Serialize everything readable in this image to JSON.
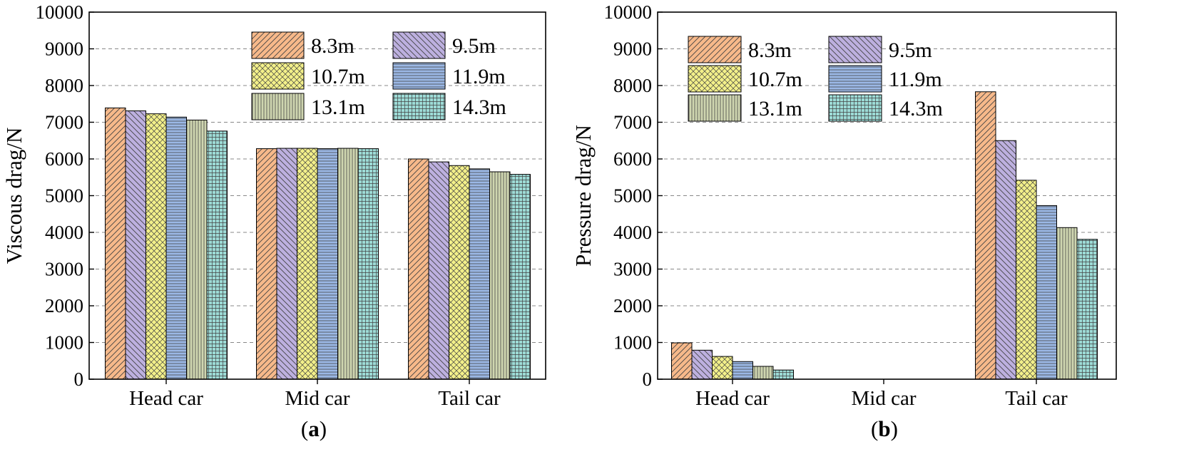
{
  "chart_data": [
    {
      "type": "bar",
      "panel_label": "a",
      "ylabel": "Viscous drag/N",
      "xlabel": "",
      "ylim": [
        0,
        10000
      ],
      "yticks": [
        0,
        1000,
        2000,
        3000,
        4000,
        5000,
        6000,
        7000,
        8000,
        9000,
        10000
      ],
      "grid": true,
      "legend_position": "top-right",
      "categories": [
        "Head car",
        "Mid car",
        "Tail car"
      ],
      "series": [
        {
          "name": "8.3m",
          "values": [
            7390,
            6280,
            6000
          ]
        },
        {
          "name": "9.5m",
          "values": [
            7310,
            6290,
            5920
          ]
        },
        {
          "name": "10.7m",
          "values": [
            7230,
            6290,
            5820
          ]
        },
        {
          "name": "11.9m",
          "values": [
            7140,
            6280,
            5730
          ]
        },
        {
          "name": "13.1m",
          "values": [
            7060,
            6290,
            5650
          ]
        },
        {
          "name": "14.3m",
          "values": [
            6760,
            6280,
            5580
          ]
        }
      ]
    },
    {
      "type": "bar",
      "panel_label": "b",
      "ylabel": "Pressure drag/N",
      "xlabel": "",
      "ylim": [
        0,
        10000
      ],
      "yticks": [
        0,
        1000,
        2000,
        3000,
        4000,
        5000,
        6000,
        7000,
        8000,
        9000,
        10000
      ],
      "grid": true,
      "legend_position": "top-left",
      "categories": [
        "Head car",
        "Mid car",
        "Tail car"
      ],
      "series": [
        {
          "name": "8.3m",
          "values": [
            990,
            0,
            7830
          ]
        },
        {
          "name": "9.5m",
          "values": [
            790,
            0,
            6500
          ]
        },
        {
          "name": "10.7m",
          "values": [
            620,
            0,
            5420
          ]
        },
        {
          "name": "11.9m",
          "values": [
            480,
            0,
            4730
          ]
        },
        {
          "name": "13.1m",
          "values": [
            350,
            0,
            4130
          ]
        },
        {
          "name": "14.3m",
          "values": [
            250,
            0,
            3810
          ]
        }
      ]
    }
  ],
  "series_style": [
    {
      "color": "#f7b98a",
      "pattern": "diagonal-hatch"
    },
    {
      "color": "#bdb0df",
      "pattern": "back-diagonal-hatch"
    },
    {
      "color": "#f3f08a",
      "pattern": "crosshatch"
    },
    {
      "color": "#9bb8e6",
      "pattern": "horizontal-lines"
    },
    {
      "color": "#cfd6b0",
      "pattern": "vertical-lines"
    },
    {
      "color": "#9ddbd6",
      "pattern": "grid"
    }
  ]
}
